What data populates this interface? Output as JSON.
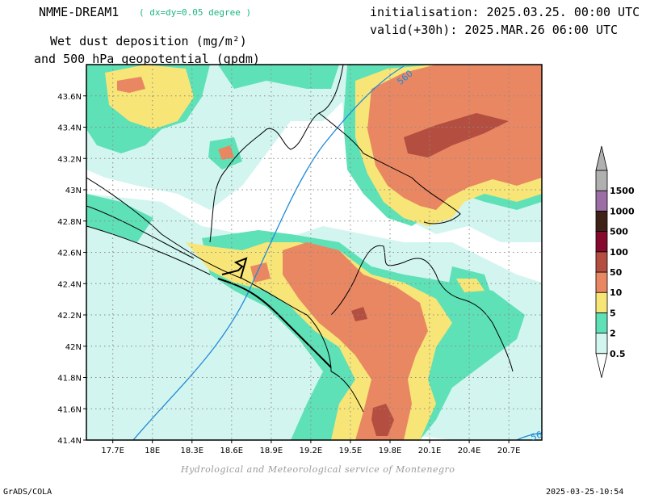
{
  "header": {
    "model": "NMME-DREAM1",
    "resolution": "( dx=dy=0.05 degree )",
    "variable_line1": "Wet dust deposition (mg/m²)",
    "variable_line2": "and 500 hPa geopotential (gpdm)",
    "init": "initialisation: 2025.03.25. 00:00 UTC",
    "valid": "valid(+30h): 2025.MAR.26 06:00 UTC"
  },
  "map": {
    "lon_ticks": [
      "17.7E",
      "18E",
      "18.3E",
      "18.6E",
      "18.9E",
      "19.2E",
      "19.5E",
      "19.8E",
      "20.1E",
      "20.4E",
      "20.7E"
    ],
    "lat_ticks": [
      "43.6N",
      "43.4N",
      "43.2N",
      "43N",
      "42.8N",
      "42.6N",
      "42.4N",
      "42.2N",
      "42N",
      "41.8N",
      "41.6N",
      "41.4N"
    ],
    "lon_range": [
      17.5,
      20.95
    ],
    "lat_range": [
      41.4,
      43.8
    ],
    "contour_labels": [
      "560",
      "56"
    ]
  },
  "legend": {
    "levels": [
      "0.5",
      "2",
      "5",
      "10",
      "50",
      "100",
      "500",
      "1000",
      "1500"
    ],
    "colors": [
      "#d2f5ef",
      "#5ee1b7",
      "#f8e577",
      "#e98763",
      "#b44e40",
      "#850a2e",
      "#3f2217",
      "#9b6fa6",
      "#b0b0b0"
    ]
  },
  "footer": {
    "credit": "Hydrological and Meteorological service of Montenegro",
    "left": "GrADS/COLA",
    "right": "2025-03-25-10:54"
  }
}
